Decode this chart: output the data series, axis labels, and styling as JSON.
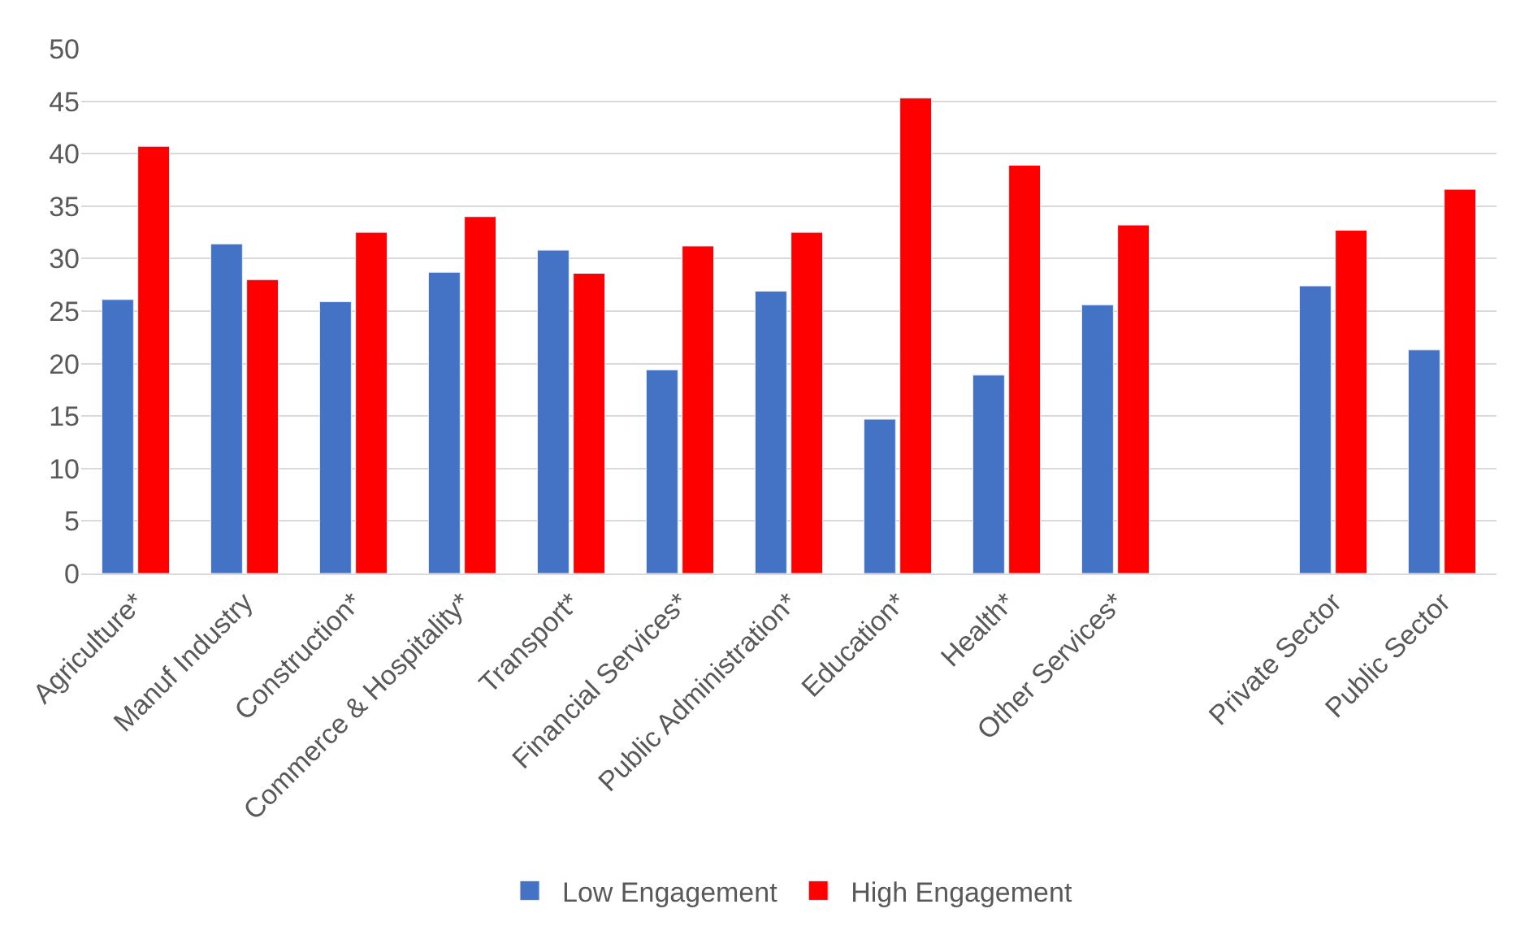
{
  "chart_data": {
    "type": "bar",
    "categories": [
      "Agriculture*",
      "Manuf Industry",
      "Construction*",
      "Commerce & Hospitality*",
      "Transport*",
      "Financial Services*",
      "Public Administration*",
      "Education*",
      "Health*",
      "Other Services*",
      null,
      "Private Sector",
      "Public Sector"
    ],
    "series": [
      {
        "name": "Low Engagement",
        "color": "#4472c4",
        "values": [
          26.1,
          31.4,
          25.9,
          28.7,
          30.8,
          19.4,
          26.9,
          14.7,
          18.9,
          25.6,
          null,
          27.4,
          21.3
        ]
      },
      {
        "name": "High Engagement",
        "color": "#ff0000",
        "values": [
          40.7,
          28.0,
          32.5,
          34.0,
          28.6,
          31.2,
          32.5,
          45.3,
          38.9,
          33.2,
          null,
          32.7,
          36.6
        ]
      }
    ],
    "ylim": [
      0,
      50
    ],
    "yticks": [
      0,
      5,
      10,
      15,
      20,
      25,
      30,
      35,
      40,
      45,
      50
    ],
    "grid": "y",
    "legend": "bottom"
  }
}
